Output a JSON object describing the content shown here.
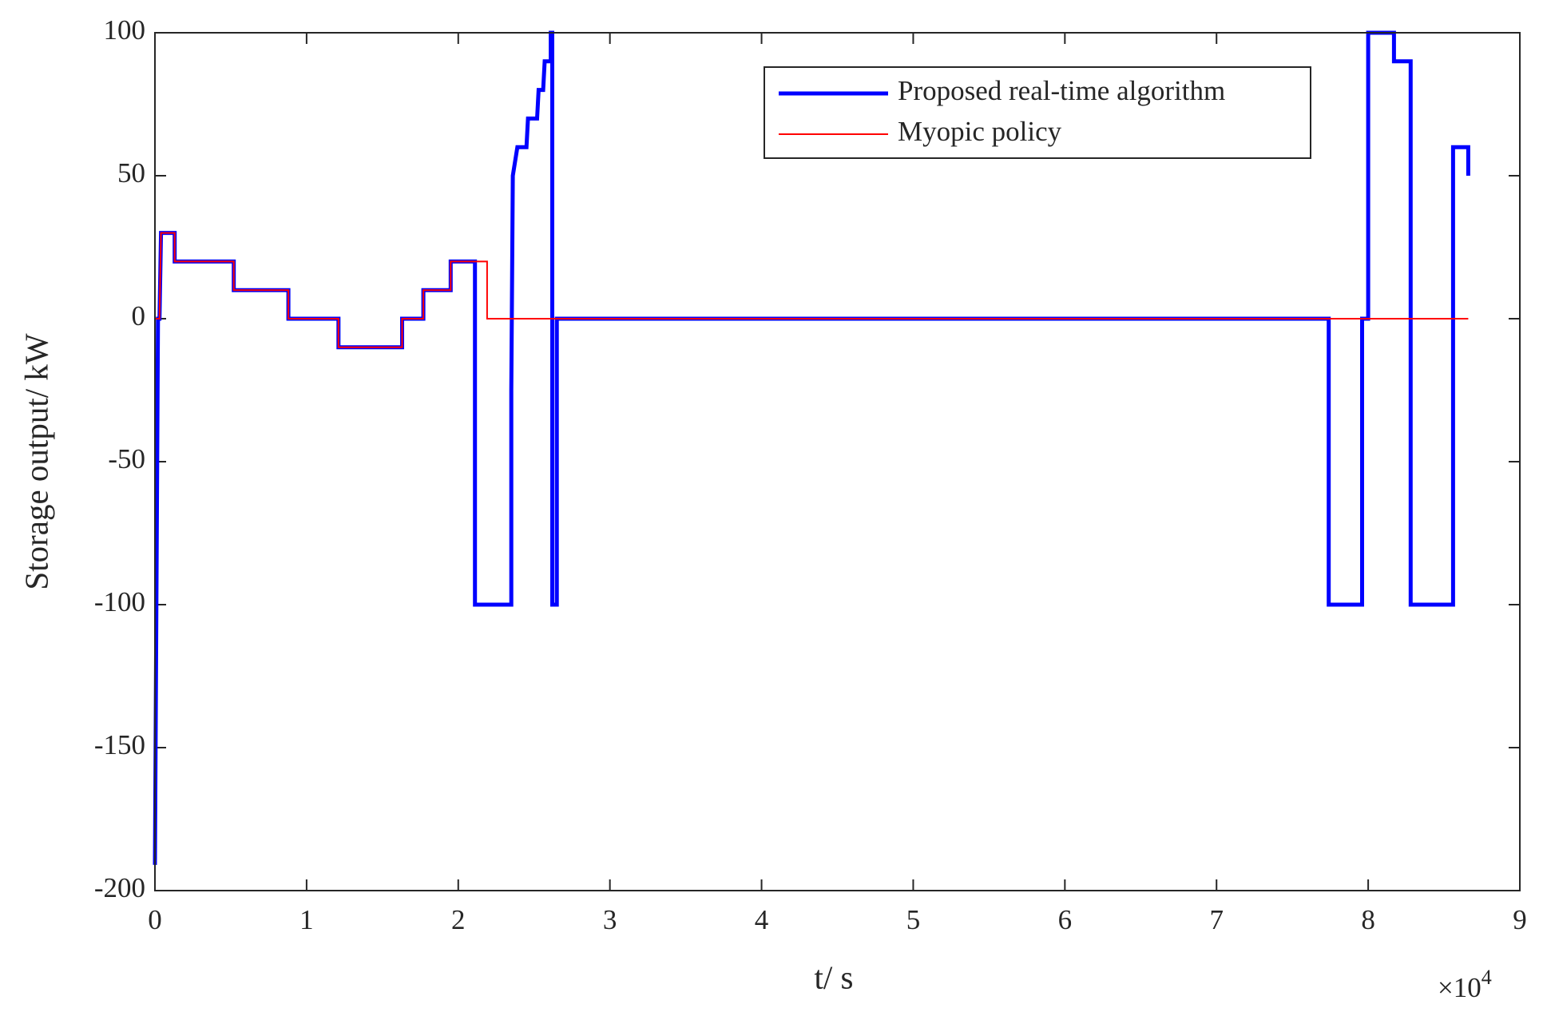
{
  "chart_data": {
    "type": "line",
    "xlabel": "t/ s",
    "ylabel": "Storage output/ kW",
    "x_offset_text": {
      "base": "×10",
      "exponent": "4"
    },
    "xlim": [
      0,
      9
    ],
    "xticks": [
      0,
      1,
      2,
      3,
      4,
      5,
      6,
      7,
      8,
      9
    ],
    "ylim": [
      -200,
      100
    ],
    "yticks": [
      -200,
      -150,
      -100,
      -50,
      0,
      50,
      100
    ],
    "legend": "upper right",
    "grid": false,
    "series": [
      {
        "name": "Proposed real-time algorithm",
        "color": "#0000ff",
        "x": [
          0,
          0.02,
          0.03,
          0.04,
          0.13,
          0.13,
          0.52,
          0.52,
          0.88,
          0.88,
          1.21,
          1.21,
          1.63,
          1.63,
          1.77,
          1.77,
          1.95,
          1.95,
          2.11,
          2.11,
          2.35,
          2.35,
          2.36,
          2.39,
          2.45,
          2.46,
          2.52,
          2.53,
          2.56,
          2.57,
          2.61,
          2.61,
          2.62,
          2.62,
          2.65,
          2.65,
          7.74,
          7.74,
          7.96,
          7.96,
          8.0,
          8.0,
          8.17,
          8.17,
          8.28,
          8.28,
          8.56,
          8.56,
          8.66,
          8.66
        ],
        "values": [
          -191,
          0,
          0,
          30,
          30,
          20,
          20,
          10,
          10,
          0,
          0,
          -10,
          -10,
          0,
          0,
          10,
          10,
          20,
          20,
          -100,
          -100,
          -25,
          50,
          60,
          60,
          70,
          70,
          80,
          80,
          90,
          90,
          100,
          100,
          -100,
          -100,
          0,
          0,
          -100,
          -100,
          0,
          0,
          100,
          100,
          90,
          90,
          -100,
          -100,
          60,
          60,
          50
        ]
      },
      {
        "name": "Myopic policy",
        "color": "#ff0000",
        "x": [
          0,
          0.03,
          0.04,
          0.13,
          0.13,
          0.52,
          0.52,
          0.88,
          0.88,
          1.21,
          1.21,
          1.63,
          1.63,
          1.77,
          1.77,
          1.95,
          1.95,
          2.19,
          2.19,
          8.66
        ],
        "values": [
          0,
          0,
          30,
          30,
          20,
          20,
          10,
          10,
          0,
          0,
          -10,
          -10,
          0,
          0,
          10,
          10,
          20,
          20,
          0,
          0
        ]
      }
    ]
  }
}
